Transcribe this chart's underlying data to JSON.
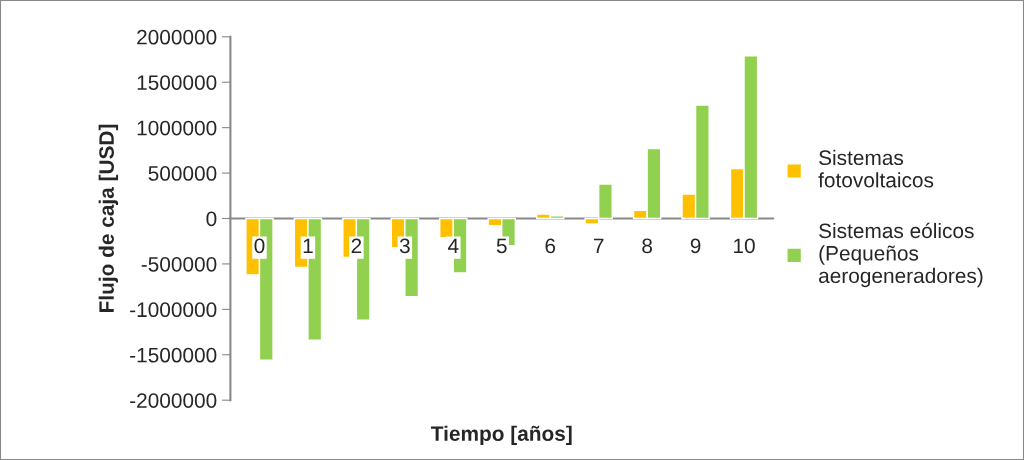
{
  "chart_data": {
    "type": "bar",
    "xlabel": "Tiempo [años]",
    "ylabel": "Flujo de caja [USD]",
    "categories": [
      "0",
      "1",
      "2",
      "3",
      "4",
      "5",
      "6",
      "7",
      "8",
      "9",
      "10"
    ],
    "series": [
      {
        "name": "Sistemas\nfotovoltaicos",
        "color": "#ffc000",
        "values": [
          -620000,
          -540000,
          -430000,
          -320000,
          -210000,
          -80000,
          50000,
          -60000,
          90000,
          270000,
          550000
        ]
      },
      {
        "name": "Sistemas eólicos\n(Pequeños\naerogeneradores)",
        "color": "#92d050",
        "values": [
          -1560000,
          -1340000,
          -1120000,
          -860000,
          -600000,
          -300000,
          30000,
          380000,
          770000,
          1250000,
          1790000
        ]
      }
    ],
    "ylim": [
      -2000000,
      2000000
    ],
    "yticks": [
      -2000000,
      -1500000,
      -1000000,
      -500000,
      0,
      500000,
      1000000,
      1500000,
      2000000
    ],
    "grid": false,
    "legend": "right"
  }
}
